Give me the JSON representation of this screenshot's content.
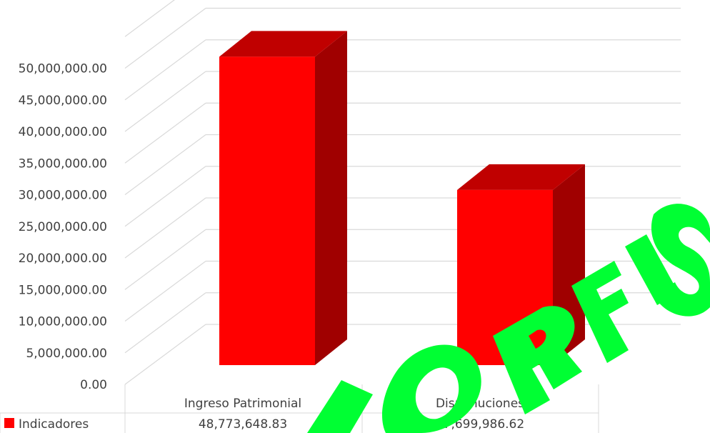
{
  "chart_data": {
    "type": "bar",
    "style": "3d-column-with-data-table",
    "categories": [
      "Ingreso Patrimonial",
      "Disminuciones"
    ],
    "series": [
      {
        "name": "Indicadores",
        "values": [
          48773648.83,
          27699986.62
        ],
        "color": "#ff0000"
      }
    ],
    "data_table": {
      "series_label": "Indicadores",
      "values_text": [
        "48,773,648.83",
        "27,699,986.62"
      ]
    },
    "ylim": [
      0,
      50000000
    ],
    "y_ticks": [
      0,
      5000000,
      10000000,
      15000000,
      20000000,
      25000000,
      30000000,
      35000000,
      40000000,
      45000000,
      50000000
    ],
    "y_tick_labels": [
      "0.00",
      "5,000,000.00",
      "10,000,000.00",
      "15,000,000.00",
      "20,000,000.00",
      "25,000,000.00",
      "30,000,000.00",
      "35,000,000.00",
      "40,000,000.00",
      "45,000,000.00",
      "50,000,000.00"
    ],
    "grid": true,
    "colors": {
      "bar_front": "#ff0000",
      "bar_top": "#c00000",
      "bar_side": "#a00000",
      "grid": "#d9d9d9",
      "axis_text": "#404040"
    },
    "watermark": {
      "text": "AL ORFIS",
      "color": "#00ff33"
    }
  }
}
